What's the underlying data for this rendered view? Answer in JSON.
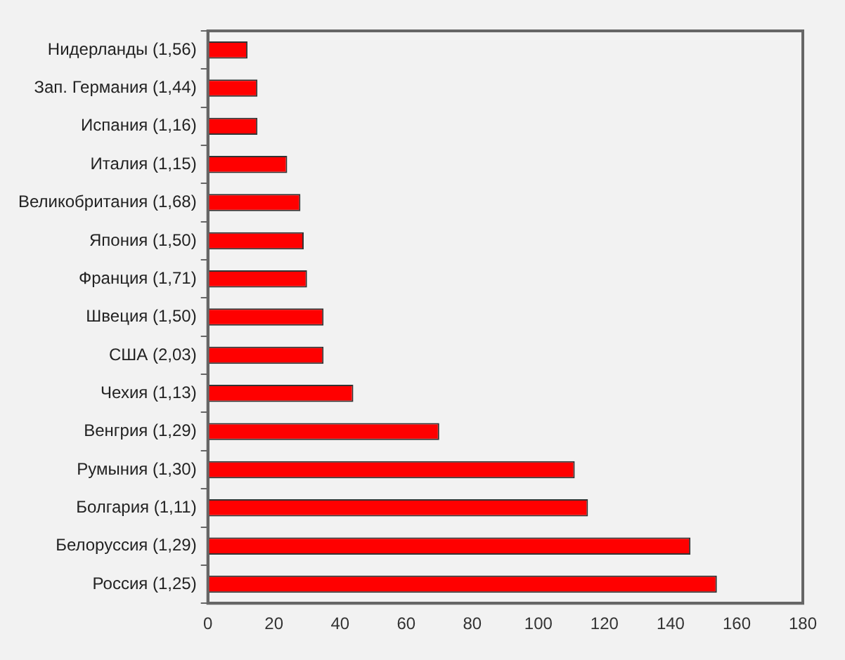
{
  "chart_data": {
    "type": "bar",
    "orientation": "horizontal",
    "categories": [
      "Нидерланды (1,56)",
      "Зап. Германия (1,44)",
      "Испания (1,16)",
      "Италия (1,15)",
      "Великобритания (1,68)",
      "Япония (1,50)",
      "Франция (1,71)",
      "Швеция (1,50)",
      "США (2,03)",
      "Чехия (1,13)",
      "Венгрия (1,29)",
      "Румыния (1,30)",
      "Болгария (1,11)",
      "Белоруссия (1,29)",
      "Россия (1,25)"
    ],
    "values": [
      12,
      15,
      15,
      24,
      28,
      29,
      30,
      35,
      35,
      44,
      70,
      111,
      115,
      146,
      154
    ],
    "color": "#ff0000",
    "xlim": [
      0,
      180
    ],
    "xticks": [
      0,
      20,
      40,
      60,
      80,
      100,
      120,
      140,
      160,
      180
    ],
    "grid": false,
    "legend": false
  }
}
